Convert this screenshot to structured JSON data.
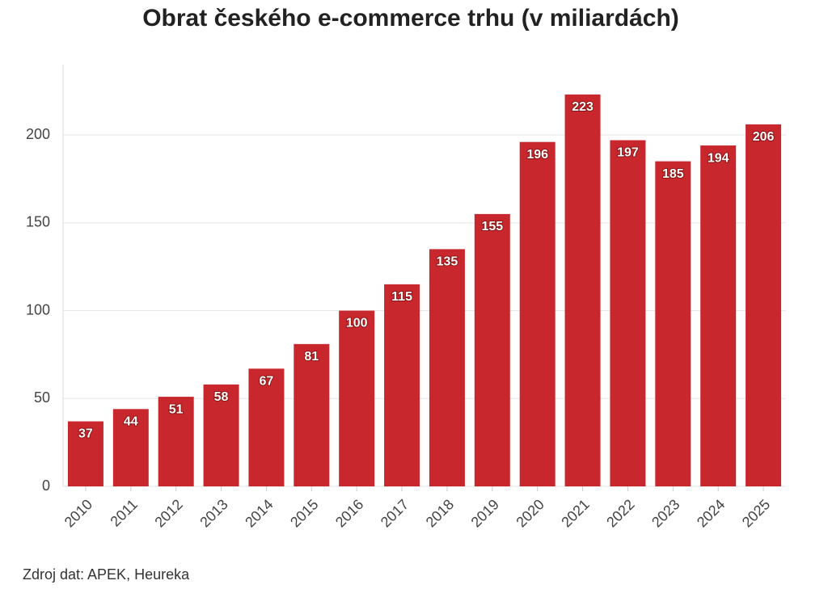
{
  "chart_data": {
    "type": "bar",
    "title": "Obrat českého e-commerce trhu (v miliardách)",
    "categories": [
      "2010",
      "2011",
      "2012",
      "2013",
      "2014",
      "2015",
      "2016",
      "2017",
      "2018",
      "2019",
      "2020",
      "2021",
      "2022",
      "2023",
      "2024",
      "2025"
    ],
    "values": [
      37,
      44,
      51,
      58,
      67,
      81,
      100,
      115,
      135,
      155,
      196,
      223,
      197,
      185,
      194,
      206
    ],
    "color": "#c8282d",
    "ylim": [
      0,
      240
    ],
    "yticks": [
      0,
      50,
      100,
      150,
      200
    ],
    "grid": true,
    "source": "Zdroj dat: APEK, Heureka"
  }
}
